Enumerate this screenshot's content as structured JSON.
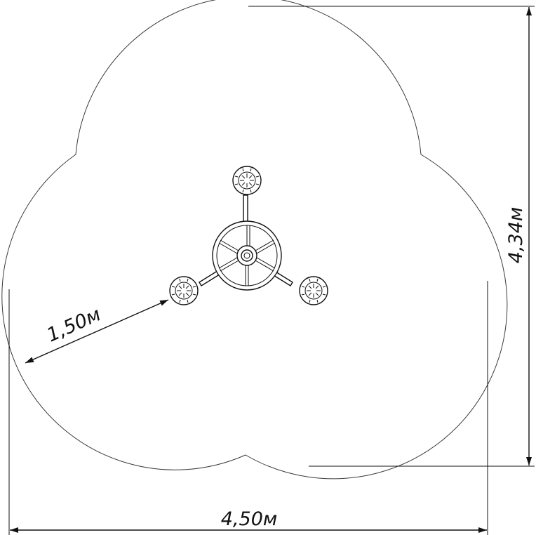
{
  "dimensions": {
    "width_label": "4,50м",
    "height_label": "4,34м",
    "radius_label": "1,50м"
  },
  "colors": {
    "line": "#111111",
    "zone": "#3a3a3a",
    "background": "#ffffff"
  }
}
